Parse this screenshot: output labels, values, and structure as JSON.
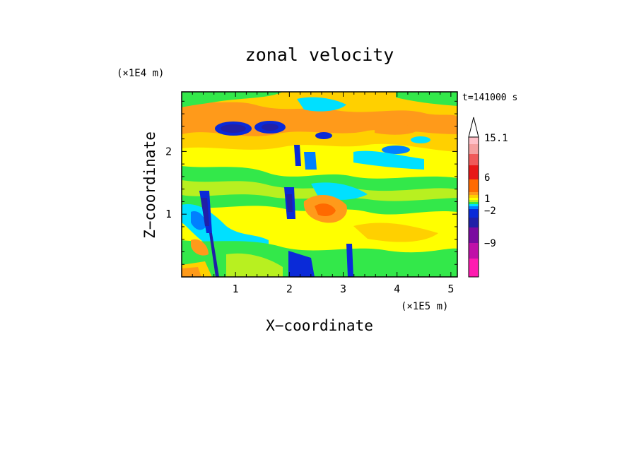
{
  "chart_data": {
    "type": "heatmap",
    "title": "zonal velocity",
    "xlabel": "X−coordinate",
    "ylabel": "Z−coordinate",
    "x_unit": "(×1E5 m)",
    "y_unit": "(×1E4 m)",
    "time_label": "t=141000 s",
    "x_ticks": [
      "1",
      "2",
      "3",
      "4",
      "5"
    ],
    "y_ticks": [
      "1",
      "2"
    ],
    "xlim": [
      0,
      5.12
    ],
    "ylim": [
      0,
      2.95
    ],
    "colorbar": {
      "levels": [
        {
          "color": "#ff1bb0"
        },
        {
          "color": "#c010a8"
        },
        {
          "color": "#7a0aa0"
        },
        {
          "color": "#2020a8"
        },
        {
          "color": "#0a2ad8"
        },
        {
          "color": "#0080ff"
        },
        {
          "color": "#00e0ff"
        },
        {
          "color": "#33e84a"
        },
        {
          "color": "#b8f020"
        },
        {
          "color": "#ffff00"
        },
        {
          "color": "#ffd000"
        },
        {
          "color": "#ff9a1a"
        },
        {
          "color": "#ff6a00"
        },
        {
          "color": "#e81818"
        },
        {
          "color": "#f05a5a"
        },
        {
          "color": "#f5a0a0"
        },
        {
          "color": "#ffc0c8"
        }
      ],
      "labels": [
        "15.1",
        "6",
        "1",
        "−2",
        "−9"
      ],
      "extend": "max"
    }
  }
}
